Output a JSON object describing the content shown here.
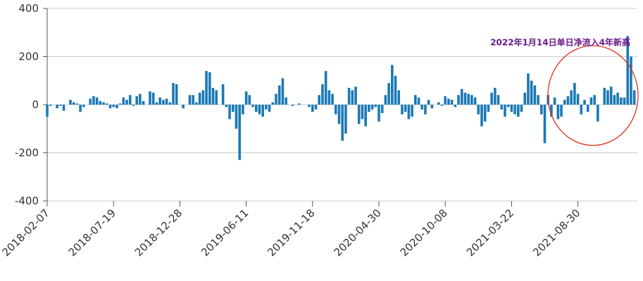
{
  "chart_data": {
    "type": "bar",
    "annotation": "2022年1月14日单日净流入4年新高",
    "color": "#1b79b5",
    "grid": true,
    "ylim": [
      -400,
      400
    ],
    "yticks": [
      -400,
      -200,
      0,
      200,
      400
    ],
    "categories": [
      "2018-02-07",
      null,
      null,
      null,
      null,
      null,
      null,
      null,
      null,
      null,
      null,
      null,
      null,
      null,
      null,
      null,
      null,
      null,
      null,
      null,
      "2018-07-19",
      null,
      null,
      null,
      null,
      null,
      null,
      null,
      null,
      null,
      null,
      null,
      null,
      null,
      null,
      null,
      null,
      null,
      null,
      null,
      "2018-12-28",
      null,
      null,
      null,
      null,
      null,
      null,
      null,
      null,
      null,
      null,
      null,
      null,
      null,
      null,
      null,
      null,
      null,
      null,
      null,
      "2019-06-11",
      null,
      null,
      null,
      null,
      null,
      null,
      null,
      null,
      null,
      null,
      null,
      null,
      null,
      null,
      null,
      null,
      null,
      null,
      null,
      "2019-11-18",
      null,
      null,
      null,
      null,
      null,
      null,
      null,
      null,
      null,
      null,
      null,
      null,
      null,
      null,
      null,
      null,
      null,
      null,
      null,
      "2020-04-30",
      null,
      null,
      null,
      null,
      null,
      null,
      null,
      null,
      null,
      null,
      null,
      null,
      null,
      null,
      null,
      null,
      null,
      null,
      null,
      "2020-10-08",
      null,
      null,
      null,
      null,
      null,
      null,
      null,
      null,
      null,
      null,
      null,
      null,
      null,
      null,
      null,
      null,
      null,
      null,
      null,
      "2021-03-22",
      null,
      null,
      null,
      null,
      null,
      null,
      null,
      null,
      null,
      null,
      null,
      null,
      null,
      null,
      null,
      null,
      null,
      null,
      null,
      "2021-08-30",
      null,
      null,
      null,
      null,
      null,
      null,
      null,
      null,
      null,
      null,
      null,
      null,
      null,
      null,
      null,
      null,
      null
    ],
    "values": [
      -50,
      -5,
      0,
      -15,
      -5,
      -25,
      0,
      20,
      10,
      5,
      -30,
      -10,
      0,
      25,
      35,
      30,
      15,
      10,
      5,
      -15,
      -10,
      -15,
      5,
      30,
      20,
      40,
      -5,
      35,
      45,
      15,
      0,
      55,
      50,
      10,
      30,
      20,
      25,
      10,
      90,
      85,
      0,
      -15,
      0,
      40,
      40,
      10,
      50,
      60,
      140,
      135,
      70,
      60,
      0,
      85,
      -10,
      -60,
      -30,
      -100,
      -230,
      -40,
      55,
      40,
      -10,
      -30,
      -40,
      -50,
      -20,
      -30,
      10,
      45,
      80,
      110,
      30,
      0,
      -5,
      0,
      5,
      0,
      0,
      -10,
      -30,
      -20,
      40,
      85,
      140,
      60,
      45,
      -40,
      -80,
      -150,
      -120,
      70,
      60,
      75,
      -80,
      -60,
      -90,
      -30,
      -20,
      -10,
      -70,
      -35,
      40,
      90,
      165,
      120,
      60,
      -40,
      -30,
      -60,
      -50,
      40,
      30,
      -20,
      -40,
      20,
      -15,
      0,
      10,
      -5,
      35,
      25,
      20,
      -10,
      40,
      65,
      50,
      45,
      40,
      30,
      -40,
      -90,
      -70,
      -30,
      50,
      70,
      40,
      -20,
      -50,
      -10,
      -30,
      -40,
      -50,
      -30,
      50,
      130,
      100,
      80,
      40,
      -40,
      -160,
      40,
      -50,
      30,
      -60,
      -50,
      20,
      35,
      60,
      90,
      45,
      -40,
      20,
      -30,
      30,
      40,
      -70,
      0,
      70,
      60,
      75,
      40,
      50,
      30,
      30,
      285,
      200,
      60
    ]
  }
}
